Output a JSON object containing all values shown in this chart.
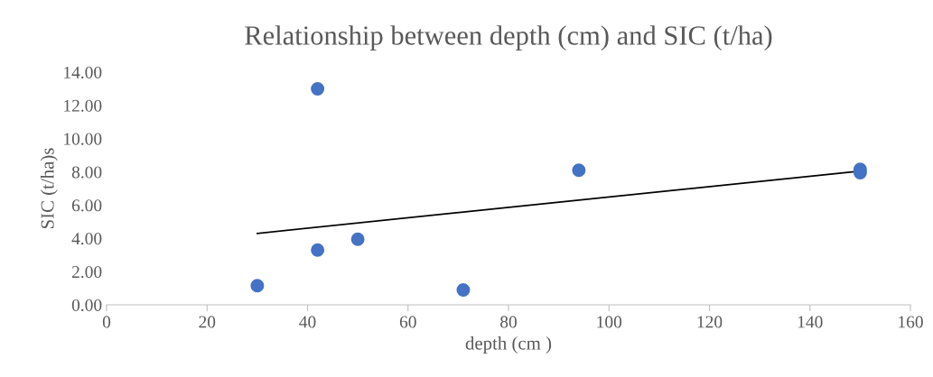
{
  "chart_data": {
    "type": "scatter",
    "title": "Relationship between depth (cm) and SIC (t/ha)",
    "xlabel": "depth (cm )",
    "ylabel": "SIC (t/ha)s",
    "series": [
      {
        "color": "#4472c4",
        "marker": "circle",
        "x": [
          30,
          42,
          42,
          50,
          71,
          94,
          150,
          150
        ],
        "values": [
          1.15,
          13.0,
          3.3,
          3.95,
          0.9,
          8.1,
          8.15,
          7.95
        ]
      },
      {
        "type": "line",
        "marker": "none",
        "color": "#000000",
        "x": [
          30,
          150
        ],
        "values": [
          4.3,
          8.05
        ]
      }
    ],
    "grid": false,
    "xlim": [
      0,
      160
    ],
    "xticks": [
      0,
      20,
      40,
      60,
      80,
      100,
      120,
      140,
      160
    ],
    "ylim": [
      0,
      14
    ],
    "yticks": [
      {
        "value": 0,
        "label": "0.00"
      },
      {
        "value": 2,
        "label": "2.00"
      },
      {
        "value": 4,
        "label": "4.00"
      },
      {
        "value": 6,
        "label": "6.00"
      },
      {
        "value": 8,
        "label": "8.00"
      },
      {
        "value": 10,
        "label": "10.00"
      },
      {
        "value": 12,
        "label": "12.00"
      },
      {
        "value": 14,
        "label": "14.00"
      }
    ]
  }
}
